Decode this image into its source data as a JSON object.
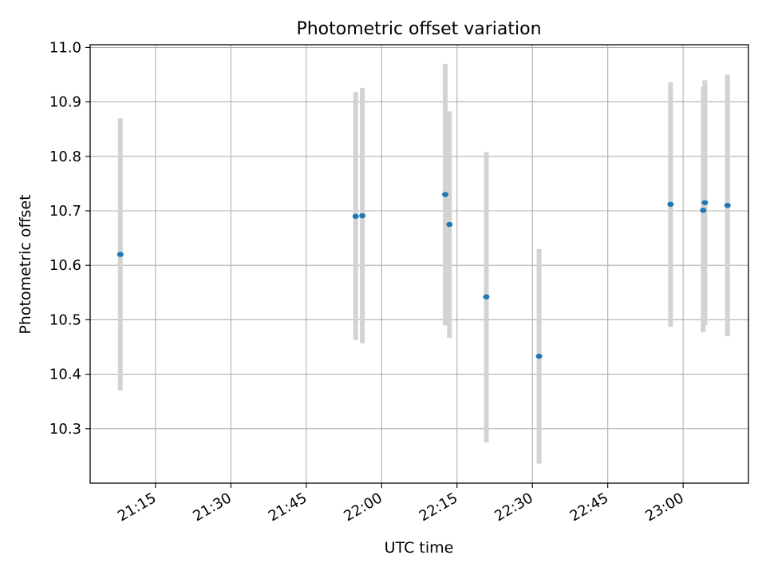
{
  "chart_data": {
    "type": "scatter",
    "title": "Photometric offset variation",
    "xlabel": "UTC time",
    "ylabel": "Photometric offset",
    "xlim": [
      "21:02",
      "23:13"
    ],
    "ylim": [
      10.2,
      11.005
    ],
    "grid": true,
    "x_ticks": [
      "21:15",
      "21:30",
      "21:45",
      "22:00",
      "22:15",
      "22:30",
      "22:45",
      "23:00"
    ],
    "y_ticks": [
      10.3,
      10.4,
      10.5,
      10.6,
      10.7,
      10.8,
      10.9,
      11.0
    ],
    "y_tick_labels": [
      "10.3",
      "10.4",
      "10.5",
      "10.6",
      "10.7",
      "10.8",
      "10.9",
      "11.0"
    ],
    "point_color": "#1f77b4",
    "errorbar_color": "#d3d3d3",
    "points": [
      {
        "x": "21:08:00",
        "y": 10.62,
        "ylow": 10.37,
        "yhigh": 10.87
      },
      {
        "x": "21:54:50",
        "y": 10.69,
        "ylow": 10.463,
        "yhigh": 10.918
      },
      {
        "x": "21:56:10",
        "y": 10.691,
        "ylow": 10.457,
        "yhigh": 10.926
      },
      {
        "x": "22:12:40",
        "y": 10.73,
        "ylow": 10.49,
        "yhigh": 10.97
      },
      {
        "x": "22:13:30",
        "y": 10.675,
        "ylow": 10.467,
        "yhigh": 10.883
      },
      {
        "x": "22:20:50",
        "y": 10.542,
        "ylow": 10.275,
        "yhigh": 10.808
      },
      {
        "x": "22:31:20",
        "y": 10.433,
        "ylow": 10.236,
        "yhigh": 10.63
      },
      {
        "x": "22:57:30",
        "y": 10.712,
        "ylow": 10.487,
        "yhigh": 10.936
      },
      {
        "x": "23:04:00",
        "y": 10.701,
        "ylow": 10.477,
        "yhigh": 10.928
      },
      {
        "x": "23:04:20",
        "y": 10.715,
        "ylow": 10.49,
        "yhigh": 10.94
      },
      {
        "x": "23:08:50",
        "y": 10.71,
        "ylow": 10.47,
        "yhigh": 10.95
      }
    ]
  }
}
